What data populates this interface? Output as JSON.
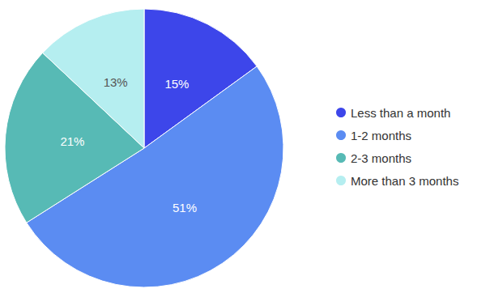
{
  "chart_data": {
    "type": "pie",
    "categories": [
      "Less than a month",
      "1-2 months",
      "2-3 months",
      "More than 3 months"
    ],
    "values": [
      15,
      51,
      21,
      13
    ],
    "value_labels": [
      "15%",
      "51%",
      "21%",
      "13%"
    ],
    "colors": [
      "#3d46ea",
      "#5b8cf2",
      "#57bab5",
      "#b5eef0"
    ],
    "data_labels": true,
    "legend": "right"
  }
}
